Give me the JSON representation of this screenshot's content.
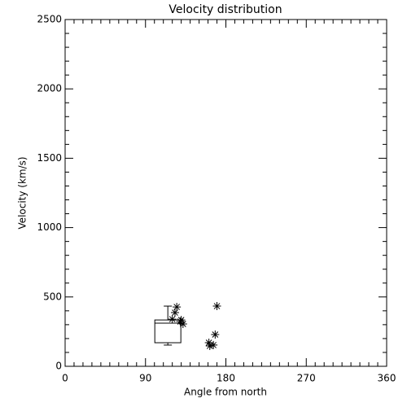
{
  "chart_data": {
    "type": "box-scatter",
    "title": "Velocity distribution",
    "xlabel": "Angle from north",
    "ylabel": "Velocity (km/s)",
    "xlim": [
      0,
      360
    ],
    "xticks": [
      0,
      90,
      180,
      270,
      360
    ],
    "ylim": [
      0,
      2500
    ],
    "yticks": [
      0,
      500,
      1000,
      1500,
      2000,
      2500
    ],
    "minor_ticks": {
      "x": 9,
      "y": 5
    },
    "color": "#000000",
    "box": {
      "x": 115,
      "min": 153,
      "q1": 170,
      "median": 311,
      "q3": 334,
      "max": 434
    },
    "points": {
      "x": [
        125,
        123,
        120,
        130,
        129,
        132,
        170,
        168,
        161,
        166,
        162
      ],
      "y": [
        428,
        387,
        340,
        334,
        323,
        305,
        434,
        229,
        170,
        153,
        147
      ]
    }
  }
}
